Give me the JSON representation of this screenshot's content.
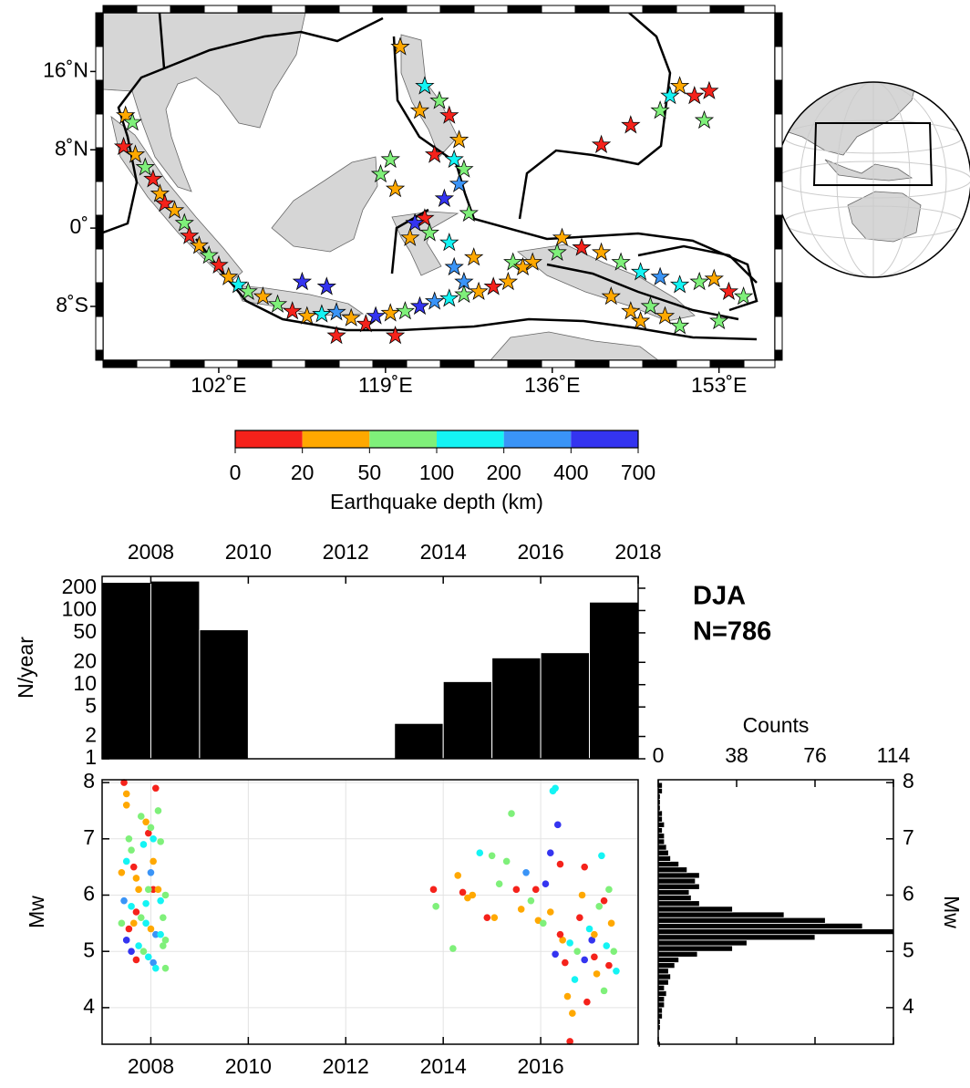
{
  "chart_data": [
    {
      "type": "map",
      "xlim": [
        90.2,
        158.7
      ],
      "ylim": [
        -13.5,
        22
      ],
      "xticks": [
        {
          "value": 102,
          "label": "102˚E"
        },
        {
          "value": 119,
          "label": "119˚E"
        },
        {
          "value": 136,
          "label": "136˚E"
        },
        {
          "value": 153,
          "label": "153˚E"
        }
      ],
      "yticks": [
        {
          "value": 16,
          "label": "16˚N"
        },
        {
          "value": 8,
          "label": "8˚N"
        },
        {
          "value": 0,
          "label": "0˚"
        },
        {
          "value": -8,
          "label": "8˚S"
        }
      ],
      "x": [
        92.5,
        93.2,
        92.3,
        93.5,
        94.5,
        95.3,
        96.0,
        96.5,
        97.5,
        98.5,
        99.0,
        100.0,
        101.0,
        102.0,
        103.0,
        104.0,
        105.0,
        106.5,
        108.0,
        109.5,
        111.0,
        112.5,
        114.0,
        115.5,
        117.0,
        118.0,
        119.5,
        121.0,
        122.5,
        124.0,
        125.5,
        127.0,
        128.5,
        130.0,
        131.5,
        134.0,
        136.5,
        139.0,
        141.0,
        143.0,
        145.0,
        147.0,
        149.0,
        151.0,
        152.5,
        154.0,
        155.5,
        153.0,
        147.5,
        113.0,
        110.5,
        120.0,
        114.0,
        123.0,
        124.5,
        125.5,
        126.5,
        126.0,
        127.0,
        126.5,
        125.0,
        123.0,
        122.0,
        121.5,
        123.5,
        125.5,
        127.5,
        128.0,
        126.0,
        127.0,
        120.0,
        118.5,
        119.5,
        120.5,
        122.5,
        124.0,
        149.0,
        148.0,
        150.5,
        152.0,
        151.5,
        147.0,
        144.0,
        141.0,
        137.0,
        132.0,
        133.0,
        142.0,
        144.0,
        146.0,
        149.0,
        145.0
      ],
      "y": [
        11.5,
        10.8,
        8.3,
        7.5,
        6.2,
        5.0,
        3.5,
        2.5,
        1.8,
        0.5,
        -0.8,
        -1.8,
        -2.8,
        -3.8,
        -5.0,
        -5.8,
        -6.5,
        -7.0,
        -7.8,
        -8.5,
        -9.0,
        -8.8,
        -8.6,
        -9.2,
        -9.8,
        -9.0,
        -8.7,
        -8.5,
        -8.0,
        -7.5,
        -7.2,
        -6.8,
        -6.5,
        -6.0,
        -5.5,
        -3.5,
        -2.5,
        -2.0,
        -2.5,
        -3.5,
        -4.5,
        -5.0,
        -5.8,
        -5.5,
        -5.2,
        -6.5,
        -7.0,
        -9.5,
        -9.0,
        -6.0,
        -5.5,
        -11.0,
        -11.0,
        14.5,
        13.0,
        11.5,
        9.0,
        7.0,
        6.0,
        4.5,
        3.0,
        1.0,
        0.5,
        -1.0,
        -0.5,
        -1.5,
        1.5,
        -3.0,
        -4.0,
        -5.5,
        4.0,
        5.5,
        7.0,
        18.5,
        12.0,
        7.5,
        14.5,
        13.5,
        13.5,
        14.0,
        11.0,
        12.0,
        10.5,
        8.5,
        -1.0,
        -3.5,
        -4.0,
        -7.0,
        -8.5,
        -8.0,
        -10.0,
        -9.5
      ],
      "depth": [
        30,
        60,
        10,
        30,
        60,
        10,
        30,
        10,
        30,
        60,
        10,
        30,
        60,
        10,
        30,
        150,
        60,
        30,
        60,
        10,
        30,
        150,
        300,
        30,
        10,
        550,
        30,
        60,
        550,
        300,
        150,
        60,
        30,
        10,
        30,
        30,
        60,
        10,
        30,
        60,
        150,
        300,
        150,
        60,
        30,
        10,
        60,
        60,
        30,
        550,
        550,
        10,
        10,
        150,
        60,
        10,
        30,
        150,
        60,
        300,
        550,
        10,
        550,
        30,
        60,
        150,
        60,
        30,
        300,
        300,
        30,
        60,
        60,
        30,
        30,
        10,
        30,
        150,
        10,
        10,
        60,
        60,
        10,
        10,
        30,
        60,
        30,
        30,
        30,
        60,
        60,
        30
      ]
    },
    {
      "type": "colorbar",
      "ticks": [
        0,
        20,
        50,
        100,
        200,
        400,
        700
      ],
      "colors": [
        "#f5221b",
        "#ffa800",
        "#7ff07a",
        "#14f4f4",
        "#3a94f7",
        "#3434f0"
      ],
      "xlabel": "Earthquake depth (km)"
    },
    {
      "type": "histogram",
      "bins": [
        2007,
        2008,
        2009,
        2010,
        2011,
        2012,
        2013,
        2014,
        2015,
        2016,
        2017,
        2018
      ],
      "values": [
        240,
        250,
        55,
        null,
        null,
        null,
        3,
        11,
        23,
        27,
        130
      ],
      "color": "#000000",
      "xlim": [
        2007,
        2018
      ],
      "xticks": [
        2008,
        2010,
        2012,
        2014,
        2016,
        2018
      ],
      "ylim": [
        1,
        289
      ],
      "yticks": [
        1,
        2,
        5,
        10,
        20,
        50,
        100,
        200
      ],
      "log_y": true,
      "ylabel": "N/year",
      "annotations": [
        "DJA",
        "N=786"
      ]
    },
    {
      "type": "scatter",
      "x": [
        2007.45,
        2007.5,
        2007.5,
        2007.55,
        2007.6,
        2007.5,
        2007.65,
        2007.7,
        2007.8,
        2007.9,
        2007.95,
        2008.05,
        2007.85,
        2008.2,
        2008.0,
        2008.05,
        2007.75,
        2007.95,
        2008.15,
        2008.3,
        2007.45,
        2007.6,
        2007.7,
        2007.8,
        2007.9,
        2008.0,
        2008.1,
        2008.2,
        2008.3,
        2007.5,
        2007.55,
        2007.65,
        2007.75,
        2007.85,
        2007.95,
        2008.05,
        2008.1,
        2008.25,
        2008.3,
        2008.1,
        2008.15,
        2008.0,
        2008.2,
        2007.6,
        2007.4,
        2007.4,
        2007.9,
        2008.25,
        2007.7,
        2008.05,
        2013.8,
        2013.85,
        2014.2,
        2014.3,
        2014.4,
        2014.5,
        2014.6,
        2014.75,
        2014.9,
        2015.0,
        2015.05,
        2015.15,
        2015.3,
        2015.4,
        2015.5,
        2015.6,
        2015.7,
        2015.8,
        2015.9,
        2015.95,
        2016.05,
        2016.1,
        2016.2,
        2016.25,
        2016.3,
        2016.35,
        2016.4,
        2016.45,
        2016.5,
        2016.55,
        2016.6,
        2016.65,
        2016.7,
        2016.75,
        2016.8,
        2016.85,
        2016.9,
        2016.95,
        2017.0,
        2017.05,
        2017.1,
        2017.15,
        2017.2,
        2017.25,
        2017.3,
        2017.35,
        2017.4,
        2017.45,
        2017.5,
        2017.55,
        2016.3,
        2016.4,
        2016.6,
        2016.9,
        2017.1,
        2017.3,
        2016.2,
        2017.4
      ],
      "y": [
        8.0,
        7.8,
        7.6,
        7.0,
        6.8,
        6.6,
        6.5,
        6.3,
        7.4,
        7.3,
        7.1,
        7.0,
        6.9,
        6.95,
        7.2,
        6.1,
        6.1,
        6.1,
        6.1,
        6.0,
        5.9,
        5.8,
        5.7,
        5.6,
        5.5,
        5.4,
        5.3,
        5.3,
        5.2,
        5.2,
        5.4,
        5.5,
        5.1,
        5.0,
        4.9,
        4.8,
        4.7,
        5.6,
        4.7,
        7.9,
        7.5,
        6.4,
        5.9,
        5.0,
        5.5,
        6.4,
        5.85,
        5.1,
        4.85,
        6.6,
        6.1,
        5.8,
        5.05,
        6.35,
        6.05,
        5.95,
        6.0,
        6.75,
        5.6,
        6.7,
        5.6,
        6.2,
        6.6,
        7.45,
        6.1,
        5.75,
        6.4,
        5.9,
        6.1,
        5.55,
        5.5,
        6.2,
        6.75,
        7.85,
        7.9,
        7.25,
        6.55,
        5.2,
        4.8,
        4.2,
        3.4,
        3.9,
        4.5,
        5.0,
        5.6,
        6.0,
        6.5,
        4.1,
        5.4,
        5.2,
        4.9,
        4.6,
        5.8,
        6.7,
        4.3,
        5.1,
        4.75,
        5.5,
        5.0,
        4.65,
        4.95,
        5.3,
        5.15,
        4.85,
        5.3,
        5.9,
        5.7,
        6.1
      ],
      "depth": [
        10,
        30,
        30,
        60,
        60,
        150,
        10,
        30,
        60,
        30,
        10,
        150,
        150,
        60,
        60,
        10,
        30,
        60,
        30,
        60,
        300,
        150,
        10,
        60,
        150,
        30,
        300,
        150,
        60,
        550,
        10,
        30,
        150,
        60,
        150,
        300,
        150,
        60,
        60,
        10,
        60,
        300,
        150,
        550,
        60,
        30,
        150,
        60,
        10,
        30,
        10,
        60,
        60,
        30,
        10,
        30,
        30,
        150,
        10,
        60,
        30,
        60,
        60,
        60,
        10,
        30,
        300,
        60,
        10,
        30,
        60,
        550,
        550,
        150,
        150,
        550,
        10,
        30,
        10,
        30,
        10,
        30,
        150,
        60,
        10,
        30,
        10,
        10,
        150,
        550,
        10,
        30,
        60,
        150,
        60,
        150,
        10,
        30,
        60,
        150,
        550,
        10,
        150,
        550,
        30,
        10,
        30,
        60
      ],
      "xlim": [
        2007,
        2018
      ],
      "xticks": [
        2008,
        2010,
        2012,
        2014,
        2016
      ],
      "ylim": [
        3.35,
        8.05
      ],
      "yticks": [
        4,
        5,
        6,
        7,
        8
      ],
      "grid": true,
      "ylabel": "Mw"
    },
    {
      "type": "histogram",
      "orientation": "horizontal",
      "bins": [
        3.3,
        3.4,
        3.5,
        3.6,
        3.7,
        3.8,
        3.9,
        4.0,
        4.1,
        4.2,
        4.3,
        4.4,
        4.5,
        4.6,
        4.7,
        4.8,
        4.9,
        5.0,
        5.1,
        5.2,
        5.3,
        5.4,
        5.5,
        5.6,
        5.7,
        5.8,
        5.9,
        6.0,
        6.1,
        6.2,
        6.3,
        6.4,
        6.5,
        6.6,
        6.7,
        6.8,
        6.9,
        7.0,
        7.1,
        7.2,
        7.3,
        7.4,
        7.5,
        7.6,
        7.7,
        7.8,
        7.9,
        8.0
      ],
      "values": [
        1,
        0,
        0,
        1,
        1,
        2,
        2,
        3,
        3,
        4,
        3,
        5,
        6,
        5,
        8,
        10,
        19,
        36,
        43,
        76,
        114,
        99,
        81,
        61,
        36,
        20,
        16,
        15,
        20,
        18,
        20,
        14,
        10,
        6,
        5,
        4,
        3,
        3,
        2,
        3,
        2,
        2,
        1,
        1,
        1,
        2,
        2
      ],
      "color": "#000000",
      "xlim": [
        0,
        114
      ],
      "xticks": [
        0,
        38,
        76,
        114
      ],
      "xlabel": "Counts",
      "ylim": [
        3.35,
        8.05
      ],
      "yticks": [
        4,
        5,
        6,
        7,
        8
      ],
      "ylabel": "Mw"
    }
  ]
}
